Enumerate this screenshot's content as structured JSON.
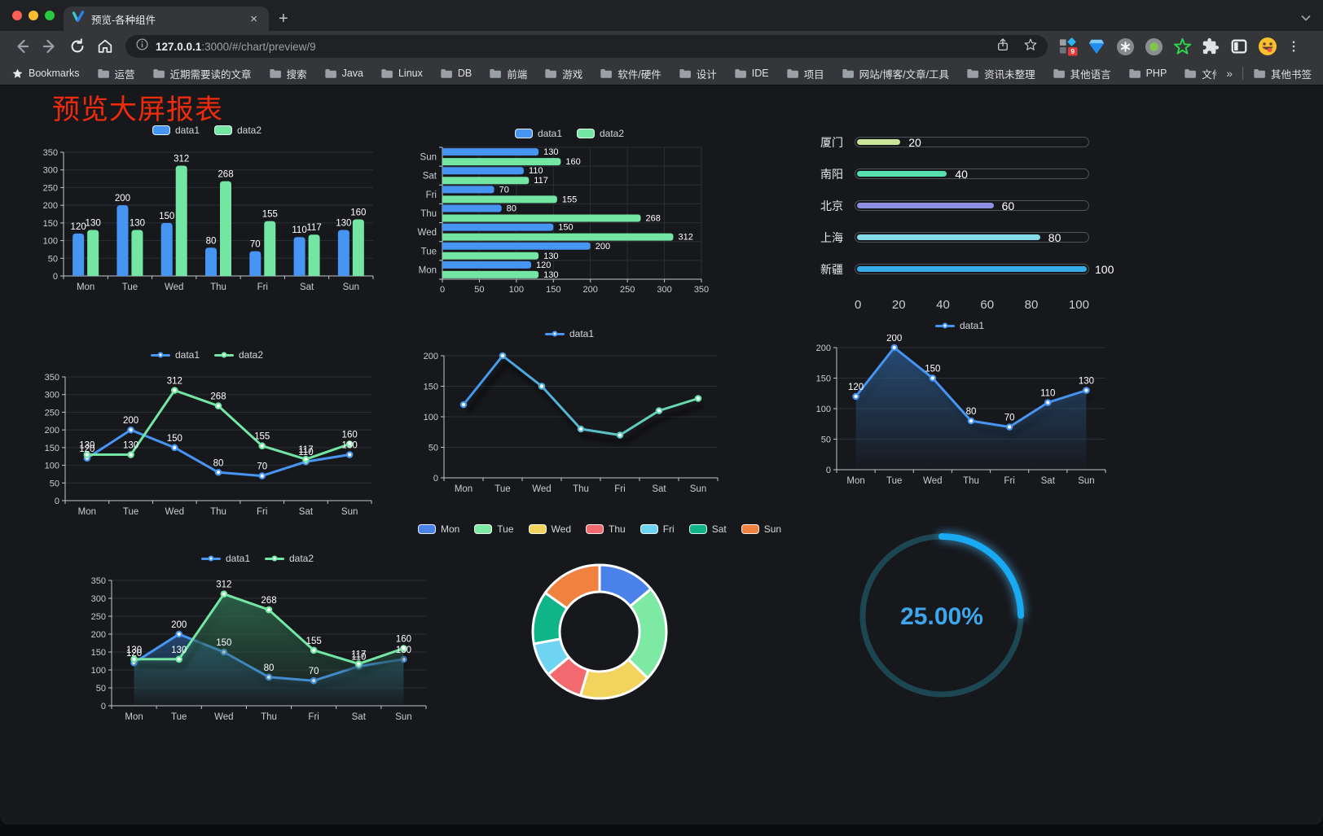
{
  "browser": {
    "tab": {
      "title": "预览-各种组件",
      "close_glyph": "×"
    },
    "new_tab_glyph": "+",
    "url_host": "127.0.0.1",
    "url_rest": ":3000/#/chart/preview/9",
    "bookmarks_label": "Bookmarks",
    "bookmarks": [
      "运营",
      "近期需要读的文章",
      "搜索",
      "Java",
      "Linux",
      "DB",
      "前端",
      "游戏",
      "软件/硬件",
      "设计",
      "IDE",
      "项目",
      "网站/博客/文章/工具",
      "资讯未整理",
      "其他语言",
      "PHP",
      "文件服务器"
    ],
    "overflow_glyph": "»",
    "other_bookmarks": "其他书签",
    "extensions": [
      "grid-badge-extension-icon",
      "gem-extension-icon",
      "command-circle-extension-icon",
      "green-dot-extension-icon",
      "star-outline-extension-icon",
      "puzzle-extensions-icon",
      "panel-toggle-extension-icon",
      "emoji-extension-icon"
    ],
    "extension_badge": "9",
    "traffic_colors": [
      "#ff5f57",
      "#febc2e",
      "#28c840"
    ]
  },
  "page": {
    "title": "预览大屏报表",
    "title_color": "#ee2b0c",
    "background": "#17181c"
  },
  "chart_data": [
    {
      "type": "bar",
      "title": "",
      "legend": "top",
      "categories": [
        "Mon",
        "Tue",
        "Wed",
        "Thu",
        "Fri",
        "Sat",
        "Sun"
      ],
      "series": [
        {
          "name": "data1",
          "color": "#4795f2",
          "values": [
            120,
            200,
            150,
            80,
            70,
            110,
            130
          ]
        },
        {
          "name": "data2",
          "color": "#73e6a4",
          "values": [
            130,
            130,
            312,
            268,
            155,
            117,
            160
          ]
        }
      ],
      "ylim": [
        0,
        350
      ],
      "ytick": 50,
      "value_labels": true,
      "grid": true
    },
    {
      "type": "hbar",
      "title": "",
      "legend": "top",
      "categories": [
        "Mon",
        "Tue",
        "Wed",
        "Thu",
        "Fri",
        "Sat",
        "Sun"
      ],
      "category_display": "Sun-at-top",
      "series": [
        {
          "name": "data1",
          "color": "#4795f2",
          "values": [
            120,
            200,
            150,
            80,
            70,
            110,
            130
          ]
        },
        {
          "name": "data2",
          "color": "#73e6a4",
          "values": [
            130,
            130,
            312,
            268,
            155,
            117,
            160
          ]
        }
      ],
      "xlim": [
        0,
        350
      ],
      "xtick": 50,
      "value_labels": true,
      "grid": true
    },
    {
      "type": "progress",
      "title": "",
      "items": [
        {
          "label": "厦门",
          "value": 20,
          "color": "#c9e49b"
        },
        {
          "label": "南阳",
          "value": 40,
          "color": "#55e0b0"
        },
        {
          "label": "北京",
          "value": 60,
          "color": "#8d8fe0"
        },
        {
          "label": "上海",
          "value": 80,
          "color": "#85d9e8"
        },
        {
          "label": "新疆",
          "value": 100,
          "color": "#38ace8"
        }
      ],
      "xlim": [
        0,
        100
      ],
      "xticks": [
        0,
        20,
        40,
        60,
        80,
        100
      ]
    },
    {
      "type": "line",
      "title": "",
      "legend": "top",
      "categories": [
        "Mon",
        "Tue",
        "Wed",
        "Thu",
        "Fri",
        "Sat",
        "Sun"
      ],
      "series": [
        {
          "name": "data1",
          "color": "#4795f2",
          "values": [
            120,
            200,
            150,
            80,
            70,
            110,
            130
          ]
        },
        {
          "name": "data2",
          "color": "#73e6a4",
          "values": [
            130,
            130,
            312,
            268,
            155,
            117,
            160
          ]
        }
      ],
      "ylim": [
        0,
        350
      ],
      "ytick": 50,
      "value_labels": true,
      "grid": true
    },
    {
      "type": "line",
      "title": "",
      "legend": "top",
      "categories": [
        "Mon",
        "Tue",
        "Wed",
        "Thu",
        "Fri",
        "Sat",
        "Sun"
      ],
      "series": [
        {
          "name": "data1",
          "color": "#4795f2",
          "values": [
            120,
            200,
            150,
            80,
            70,
            110,
            130
          ]
        }
      ],
      "gradient": [
        "#3e8ef7",
        "#6fe6a5"
      ],
      "shadow": true,
      "ylim": [
        0,
        200
      ],
      "ytick": 50,
      "value_labels": false,
      "grid": true
    },
    {
      "type": "line",
      "title": "",
      "legend": "top",
      "categories": [
        "Mon",
        "Tue",
        "Wed",
        "Thu",
        "Fri",
        "Sat",
        "Sun"
      ],
      "series": [
        {
          "name": "data1",
          "color": "#4795f2",
          "values": [
            120,
            200,
            150,
            80,
            70,
            110,
            130
          ],
          "area": "#2a5583"
        }
      ],
      "shadow": true,
      "ylim": [
        0,
        200
      ],
      "ytick": 50,
      "value_labels": true,
      "grid": true
    },
    {
      "type": "line",
      "title": "",
      "legend": "top",
      "categories": [
        "Mon",
        "Tue",
        "Wed",
        "Thu",
        "Fri",
        "Sat",
        "Sun"
      ],
      "series": [
        {
          "name": "data1",
          "color": "#4795f2",
          "values": [
            120,
            200,
            150,
            80,
            70,
            110,
            130
          ],
          "area": "#27507e"
        },
        {
          "name": "data2",
          "color": "#73e6a4",
          "values": [
            130,
            130,
            312,
            268,
            155,
            117,
            160
          ],
          "area": "#2f6b4f"
        }
      ],
      "shadow": true,
      "ylim": [
        0,
        350
      ],
      "ytick": 50,
      "value_labels": true,
      "grid": true
    },
    {
      "type": "pie",
      "title": "",
      "legend": "top",
      "shape": "donut",
      "categories": [
        "Mon",
        "Tue",
        "Wed",
        "Thu",
        "Fri",
        "Sat",
        "Sun"
      ],
      "values": [
        120,
        200,
        150,
        80,
        70,
        110,
        130
      ],
      "colors": [
        "#4a82ea",
        "#7ee9a2",
        "#f2d35e",
        "#f2696f",
        "#6fd3f2",
        "#0fb488",
        "#f0813f"
      ]
    },
    {
      "type": "gauge",
      "title": "",
      "value": 25,
      "label": "25.00%",
      "color": "#18aaf2",
      "track_color": "#1c4652",
      "text_color": "#3ea6ec"
    }
  ]
}
